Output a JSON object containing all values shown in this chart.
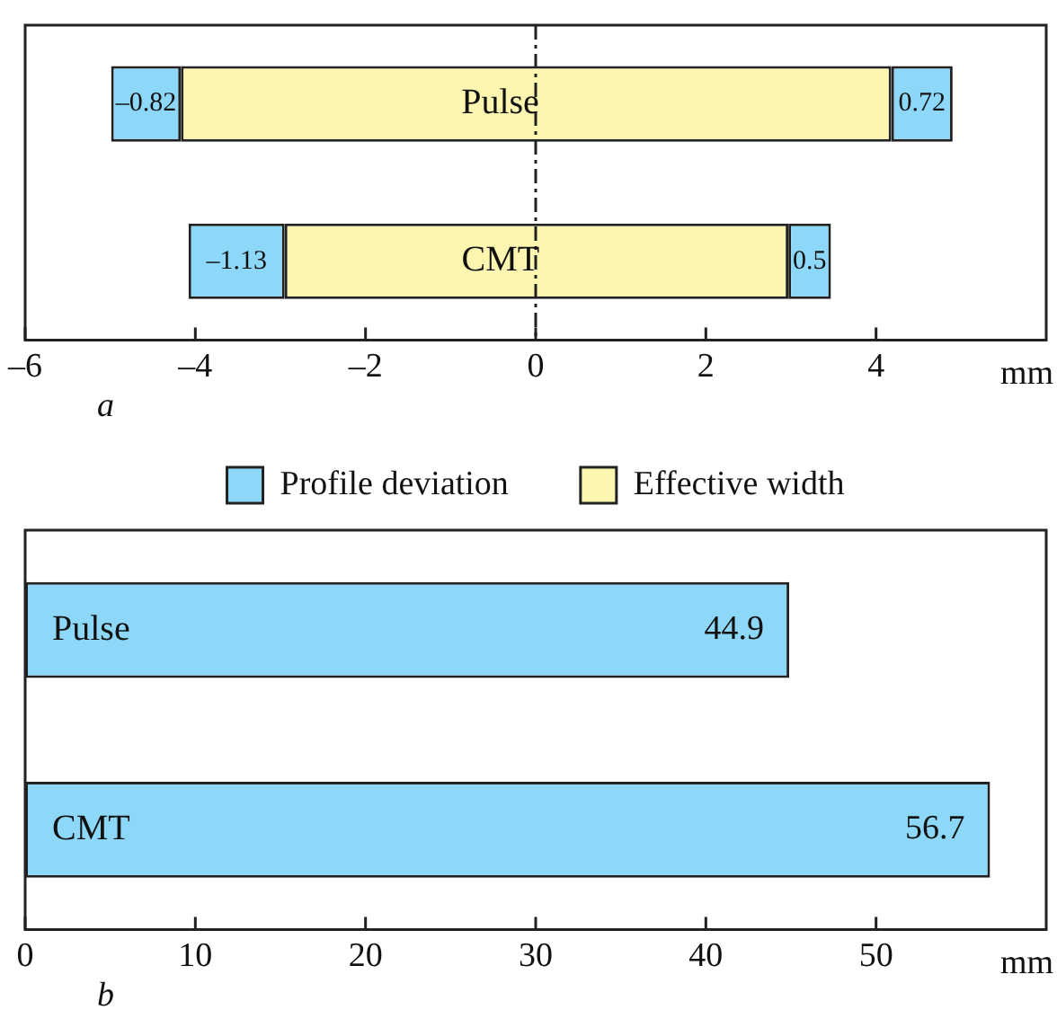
{
  "chart_data": [
    {
      "type": "bar",
      "orientation": "horizontal",
      "categories": [
        "Pulse",
        "CMT"
      ],
      "series": [
        {
          "name": "Profile deviation",
          "color": "#8dd8f8",
          "values": [
            -0.82,
            -1.13
          ],
          "base": [
            -4.17,
            -2.95
          ],
          "value_labels": [
            "–0.82",
            "–1.13"
          ]
        },
        {
          "name": "Effective width",
          "color": "#fdf6b0",
          "values": [
            8.35,
            5.92
          ],
          "base": [
            -4.17,
            -2.95
          ]
        },
        {
          "color": "#8dd8f8",
          "values": [
            0.72,
            0.5
          ],
          "base": [
            4.18,
            2.97
          ],
          "value_labels": [
            "0.72",
            "0.5"
          ]
        }
      ],
      "xlim": [
        -6,
        6
      ],
      "xticks": [
        {
          "value": -6,
          "label": "–6"
        },
        {
          "value": -4,
          "label": "–4"
        },
        {
          "value": -2,
          "label": "–2"
        },
        0,
        2,
        4
      ],
      "xlabel": "mm",
      "ref_lines": [
        {
          "axis": "x",
          "value": 0,
          "line_style": "dashed"
        }
      ],
      "legend": "bottom",
      "tick_labels": "x",
      "grid": false,
      "annotations": [
        "a"
      ]
    },
    {
      "type": "bar",
      "orientation": "horizontal",
      "categories": [
        "Pulse",
        "CMT"
      ],
      "values": [
        44.9,
        56.7
      ],
      "color": "#8dd8f8",
      "data_labels": true,
      "xlim": [
        0,
        60
      ],
      "xticks": [
        0,
        10,
        20,
        30,
        40,
        50
      ],
      "xlabel": "mm",
      "tick_labels": "x",
      "grid": false,
      "annotations": [
        "b"
      ]
    }
  ]
}
